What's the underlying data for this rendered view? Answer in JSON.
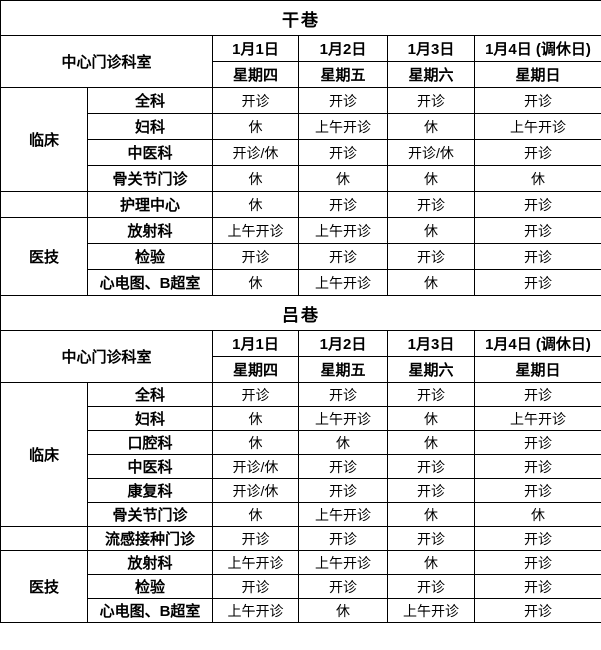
{
  "colors": {
    "background": "#ffffff",
    "border": "#000000",
    "text": "#000000"
  },
  "tables": [
    {
      "title": "干巷",
      "header": {
        "dept_label": "中心门诊科室",
        "dates": [
          "1月1日",
          "1月2日",
          "1月3日",
          "1月4日 (调休日)"
        ],
        "weekdays": [
          "星期四",
          "星期五",
          "星期六",
          "星期日"
        ]
      },
      "rows": [
        {
          "group": "临床",
          "group_span": 4,
          "dept": "全科",
          "values": [
            "开诊",
            "开诊",
            "开诊",
            "开诊"
          ]
        },
        {
          "dept": "妇科",
          "values": [
            "休",
            "上午开诊",
            "休",
            "上午开诊"
          ]
        },
        {
          "dept": "中医科",
          "values": [
            "开诊/休",
            "开诊",
            "开诊/休",
            "开诊"
          ]
        },
        {
          "dept": "骨关节门诊",
          "values": [
            "休",
            "休",
            "休",
            "休"
          ]
        },
        {
          "group": "",
          "group_span": 1,
          "dept": "护理中心",
          "values": [
            "休",
            "开诊",
            "开诊",
            "开诊"
          ]
        },
        {
          "group": "医技",
          "group_span": 3,
          "dept": "放射科",
          "values": [
            "上午开诊",
            "上午开诊",
            "休",
            "开诊"
          ]
        },
        {
          "dept": "检验",
          "values": [
            "开诊",
            "开诊",
            "开诊",
            "开诊"
          ]
        },
        {
          "dept": "心电图、B超室",
          "values": [
            "休",
            "上午开诊",
            "休",
            "开诊"
          ]
        }
      ]
    },
    {
      "title": "吕巷",
      "header": {
        "dept_label": "中心门诊科室",
        "dates": [
          "1月1日",
          "1月2日",
          "1月3日",
          "1月4日 (调休日)"
        ],
        "weekdays": [
          "星期四",
          "星期五",
          "星期六",
          "星期日"
        ]
      },
      "rows": [
        {
          "group": "临床",
          "group_span": 6,
          "dept": "全科",
          "values": [
            "开诊",
            "开诊",
            "开诊",
            "开诊"
          ]
        },
        {
          "dept": "妇科",
          "values": [
            "休",
            "上午开诊",
            "休",
            "上午开诊"
          ]
        },
        {
          "dept": "口腔科",
          "values": [
            "休",
            "休",
            "休",
            "开诊"
          ]
        },
        {
          "dept": "中医科",
          "values": [
            "开诊/休",
            "开诊",
            "开诊",
            "开诊"
          ]
        },
        {
          "dept": "康复科",
          "values": [
            "开诊/休",
            "开诊",
            "开诊",
            "开诊"
          ]
        },
        {
          "dept": "骨关节门诊",
          "values": [
            "休",
            "上午开诊",
            "休",
            "休"
          ]
        },
        {
          "group": "",
          "group_span": 1,
          "dept": "流感接种门诊",
          "values": [
            "开诊",
            "开诊",
            "开诊",
            "开诊"
          ]
        },
        {
          "group": "医技",
          "group_span": 3,
          "dept": "放射科",
          "values": [
            "上午开诊",
            "上午开诊",
            "休",
            "开诊"
          ]
        },
        {
          "dept": "检验",
          "values": [
            "开诊",
            "开诊",
            "开诊",
            "开诊"
          ]
        },
        {
          "dept": "心电图、B超室",
          "values": [
            "上午开诊",
            "休",
            "上午开诊",
            "开诊"
          ]
        }
      ]
    }
  ]
}
